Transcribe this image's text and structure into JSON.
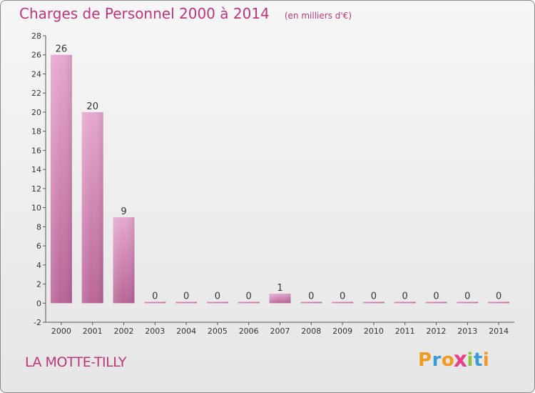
{
  "chart_data": {
    "type": "bar",
    "title": "Charges de Personnel 2000 à 2014",
    "subtitle": "(en milliers d'€)",
    "categories": [
      "2000",
      "2001",
      "2002",
      "2003",
      "2004",
      "2005",
      "2006",
      "2007",
      "2008",
      "2009",
      "2010",
      "2011",
      "2012",
      "2013",
      "2014"
    ],
    "values": [
      26,
      20,
      9,
      0,
      0,
      0,
      0,
      1,
      0,
      0,
      0,
      0,
      0,
      0,
      0
    ],
    "data_labels": [
      "26",
      "20",
      "9",
      "0",
      "0",
      "0",
      "0",
      "1",
      "0",
      "0",
      "0",
      "0",
      "0",
      "0",
      "0"
    ],
    "ylim": [
      -2,
      28
    ],
    "yticks": [
      -2,
      0,
      2,
      4,
      6,
      8,
      10,
      12,
      14,
      16,
      18,
      20,
      22,
      24,
      26,
      28
    ],
    "grid": false,
    "bar_color": "#d98ab8",
    "title_color": "#c0357a"
  },
  "footer": {
    "commune": "LA MOTTE-TILLY",
    "logo_letters": [
      "P",
      "r",
      "o",
      "x",
      "i",
      "t",
      "i"
    ],
    "logo_colors": [
      "#f39a1f",
      "#3a9bd5",
      "#f39a1f",
      "#e83e8c",
      "#8bc53f",
      "#3a9bd5",
      "#f39a1f"
    ]
  }
}
